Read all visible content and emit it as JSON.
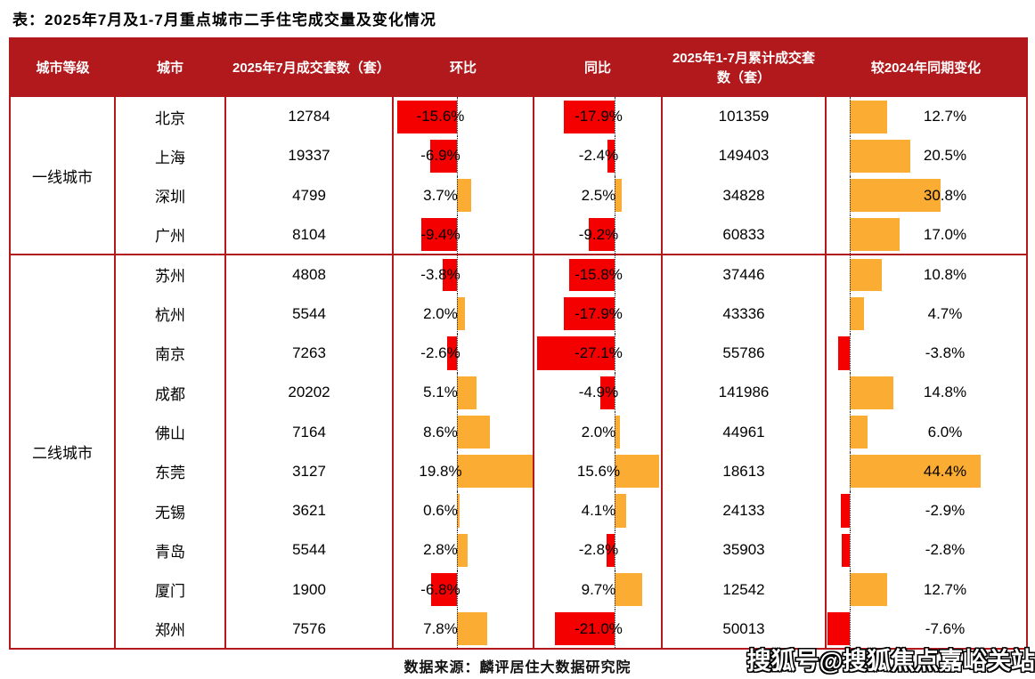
{
  "title": "表：2025年7月及1-7月重点城市二手住宅成交量及变化情况",
  "watermark": "搜狐号@搜狐焦点嘉峪关站",
  "colors": {
    "header_bg": "#B1191C",
    "table_border": "#B1191C",
    "negative_bar": "#F50000",
    "positive_bar": "#FBAD33"
  },
  "chart_data": {
    "type": "table",
    "title": "表：2025年7月及1-7月重点城市二手住宅成交量及变化情况",
    "source": "数据来源：麟评居住大数据研究院",
    "columns": [
      "城市等级",
      "城市",
      "2025年7月成交套数（套）",
      "环比",
      "同比",
      "2025年1-7月累计成交套数（套）",
      "较2024年同期变化"
    ],
    "bar_columns_note": "环比 / 同比 / 较2024年同期变化 三列含数据条：负值为红色向左，正值为橙色向右，虚线为零轴",
    "groups": [
      {
        "tier": "一线城市",
        "rows": [
          {
            "city": "北京",
            "jul_sales": 12784,
            "mom_pct": -15.6,
            "yoy_pct": -17.9,
            "cum_sales": 101359,
            "cum_yoy_pct": 12.7
          },
          {
            "city": "上海",
            "jul_sales": 19337,
            "mom_pct": -6.9,
            "yoy_pct": -2.4,
            "cum_sales": 149403,
            "cum_yoy_pct": 20.5
          },
          {
            "city": "深圳",
            "jul_sales": 4799,
            "mom_pct": 3.7,
            "yoy_pct": 2.5,
            "cum_sales": 34828,
            "cum_yoy_pct": 30.8
          },
          {
            "city": "广州",
            "jul_sales": 8104,
            "mom_pct": -9.4,
            "yoy_pct": -9.2,
            "cum_sales": 60833,
            "cum_yoy_pct": 17.0
          }
        ]
      },
      {
        "tier": "二线城市",
        "rows": [
          {
            "city": "苏州",
            "jul_sales": 4808,
            "mom_pct": -3.8,
            "yoy_pct": -15.8,
            "cum_sales": 37446,
            "cum_yoy_pct": 10.8
          },
          {
            "city": "杭州",
            "jul_sales": 5544,
            "mom_pct": 2.0,
            "yoy_pct": -17.9,
            "cum_sales": 43336,
            "cum_yoy_pct": 4.7
          },
          {
            "city": "南京",
            "jul_sales": 7263,
            "mom_pct": -2.6,
            "yoy_pct": -27.1,
            "cum_sales": 55786,
            "cum_yoy_pct": -3.8
          },
          {
            "city": "成都",
            "jul_sales": 20202,
            "mom_pct": 5.1,
            "yoy_pct": -4.9,
            "cum_sales": 141986,
            "cum_yoy_pct": 14.8
          },
          {
            "city": "佛山",
            "jul_sales": 7164,
            "mom_pct": 8.6,
            "yoy_pct": 2.0,
            "cum_sales": 44961,
            "cum_yoy_pct": 6.0
          },
          {
            "city": "东莞",
            "jul_sales": 3127,
            "mom_pct": 19.8,
            "yoy_pct": 15.6,
            "cum_sales": 18613,
            "cum_yoy_pct": 44.4
          },
          {
            "city": "无锡",
            "jul_sales": 3621,
            "mom_pct": 0.6,
            "yoy_pct": 4.1,
            "cum_sales": 24133,
            "cum_yoy_pct": -2.9
          },
          {
            "city": "青岛",
            "jul_sales": 5544,
            "mom_pct": 2.8,
            "yoy_pct": -2.8,
            "cum_sales": 35903,
            "cum_yoy_pct": -2.8
          },
          {
            "city": "厦门",
            "jul_sales": 1900,
            "mom_pct": -6.8,
            "yoy_pct": 9.7,
            "cum_sales": 12542,
            "cum_yoy_pct": 12.7
          },
          {
            "city": "郑州",
            "jul_sales": 7576,
            "mom_pct": 7.8,
            "yoy_pct": -21.0,
            "cum_sales": 50013,
            "cum_yoy_pct": -7.6
          }
        ]
      }
    ]
  }
}
